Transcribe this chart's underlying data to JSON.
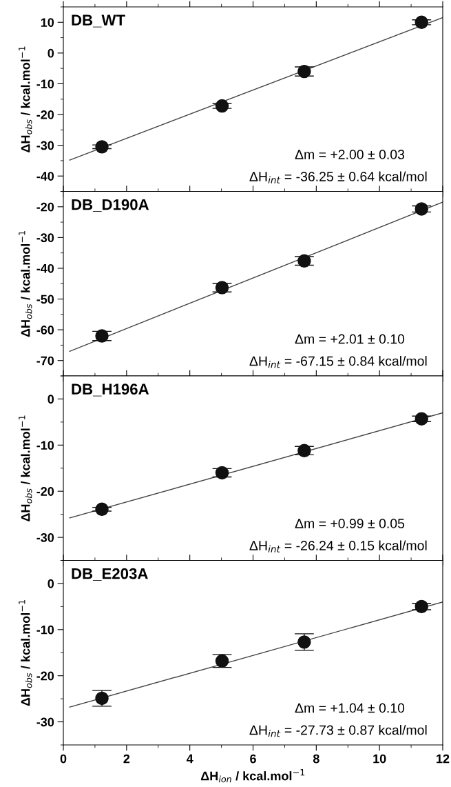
{
  "chart_data": [
    {
      "type": "scatter",
      "title": "DB_WT",
      "ylabel": "ΔH$_{obs}$ / kcal.mol$^{−1}$",
      "xlim": [
        0,
        12
      ],
      "ylim": [
        -45,
        15
      ],
      "yticks": [
        -40,
        -30,
        -20,
        -10,
        0,
        10
      ],
      "tick_labels": "y",
      "marker": "circle",
      "grid": false,
      "legend": false,
      "series": [
        {
          "color": "#111111",
          "x": [
            1.22,
            5.02,
            7.62,
            11.33
          ],
          "values": [
            -30.5,
            -17.2,
            -6.0,
            10.0
          ],
          "errors": [
            0.6,
            0.8,
            1.5,
            0.8
          ]
        },
        {
          "type": "line",
          "marker": "none",
          "color": "#444444",
          "x": [
            0.2,
            12
          ],
          "values": [
            -34.8,
            11.5
          ]
        }
      ],
      "annotations": [
        "Δm = +2.00 ± 0.03",
        "ΔH$_{int}$ = -36.25 ± 0.64 kcal/mol"
      ]
    },
    {
      "type": "scatter",
      "title": "DB_D190A",
      "ylabel": "ΔH$_{obs}$ / kcal.mol$^{−1}$",
      "xlim": [
        0,
        12
      ],
      "ylim": [
        -75,
        -15
      ],
      "yticks": [
        -70,
        -60,
        -50,
        -40,
        -30,
        -20
      ],
      "tick_labels": "y",
      "marker": "circle",
      "grid": false,
      "legend": false,
      "series": [
        {
          "color": "#111111",
          "x": [
            1.22,
            5.02,
            7.62,
            11.33
          ],
          "values": [
            -62.0,
            -46.3,
            -37.6,
            -20.7
          ],
          "errors": [
            1.5,
            1.4,
            1.4,
            1.0
          ]
        },
        {
          "type": "line",
          "marker": "none",
          "color": "#444444",
          "x": [
            0.2,
            12
          ],
          "values": [
            -67.0,
            -18.5
          ]
        }
      ],
      "annotations": [
        "Δm = +2.01 ± 0.10",
        "ΔH$_{int}$ = -67.15 ± 0.84 kcal/mol"
      ]
    },
    {
      "type": "scatter",
      "title": "DB_H196A",
      "ylabel": "ΔH$_{obs}$ / kcal.mol$^{−1}$",
      "xlim": [
        0,
        12
      ],
      "ylim": [
        -35,
        5
      ],
      "yticks": [
        -30,
        -20,
        -10,
        0
      ],
      "tick_labels": "y",
      "marker": "circle",
      "grid": false,
      "legend": false,
      "series": [
        {
          "color": "#111111",
          "x": [
            1.22,
            5.02,
            7.62,
            11.33
          ],
          "values": [
            -23.9,
            -16.0,
            -11.2,
            -4.3
          ],
          "errors": [
            0.4,
            0.9,
            0.9,
            0.6
          ]
        },
        {
          "type": "line",
          "marker": "none",
          "color": "#444444",
          "x": [
            0.2,
            12
          ],
          "values": [
            -25.8,
            -3.0
          ]
        }
      ],
      "annotations": [
        "Δm = +0.99 ± 0.05",
        "ΔH$_{int}$ = -26.24 ± 0.15 kcal/mol"
      ]
    },
    {
      "type": "scatter",
      "title": "DB_E203A",
      "ylabel": "ΔH$_{obs}$ / kcal.mol$^{−1}$",
      "xlabel": "ΔH$_{ion}$ / kcal.mol$^{−1}$",
      "xlim": [
        0,
        12
      ],
      "xticks": [
        0,
        2,
        4,
        6,
        8,
        10,
        12
      ],
      "ylim": [
        -35,
        5
      ],
      "yticks": [
        -30,
        -20,
        -10,
        0
      ],
      "marker": "circle",
      "grid": false,
      "legend": false,
      "series": [
        {
          "color": "#111111",
          "x": [
            1.22,
            5.02,
            7.62,
            11.33
          ],
          "values": [
            -24.9,
            -16.8,
            -12.7,
            -5.0
          ],
          "errors": [
            1.7,
            1.4,
            1.8,
            0.7
          ]
        },
        {
          "type": "line",
          "marker": "none",
          "color": "#444444",
          "x": [
            0.2,
            12
          ],
          "values": [
            -26.8,
            -4.0
          ]
        }
      ],
      "annotations": [
        "Δm = +1.04 ± 0.10",
        "ΔH$_{int}$ = -27.73 ± 0.87 kcal/mol"
      ]
    }
  ]
}
